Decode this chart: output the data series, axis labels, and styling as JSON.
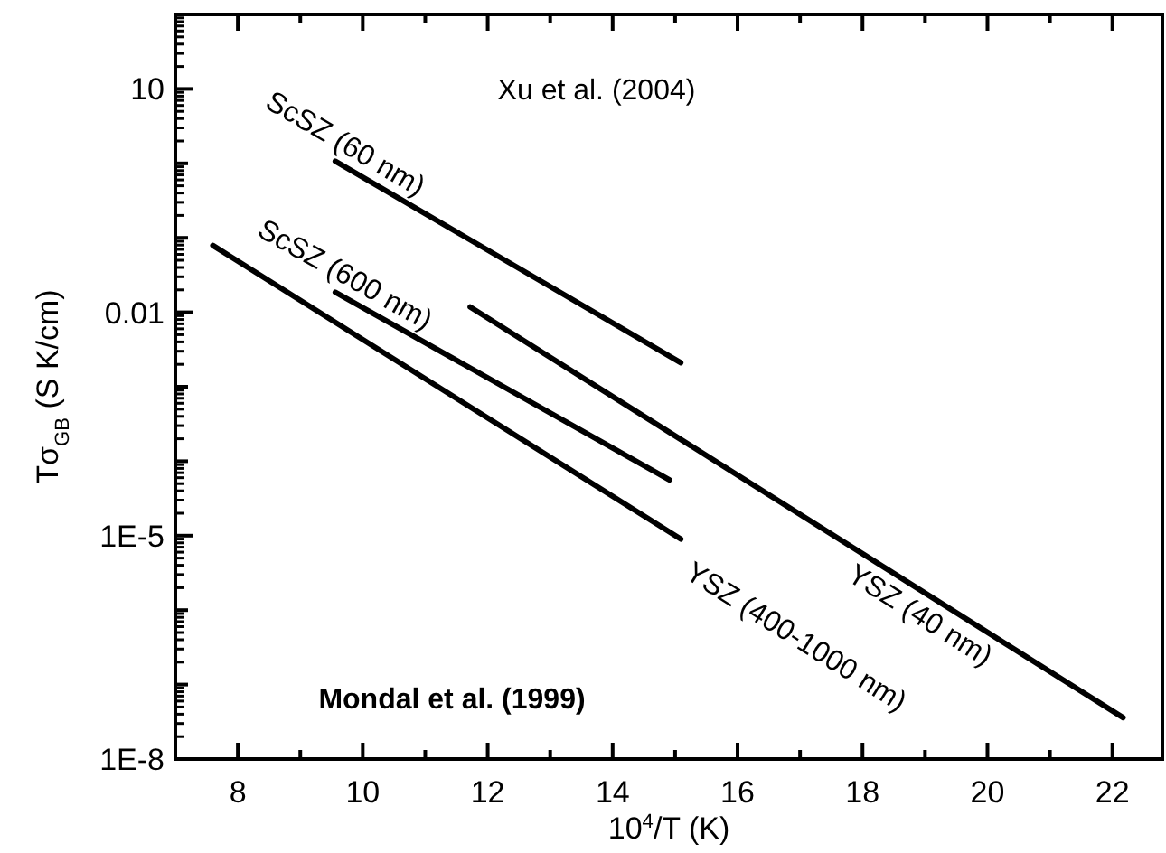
{
  "chart_data": {
    "type": "line",
    "xlabel": "10$^{4}$/T (K)",
    "ylabel": "Tσ$_{GB}$ (S K/cm)",
    "log": "y",
    "xlim": [
      7,
      22.8
    ],
    "ylim": [
      1e-08,
      100
    ],
    "xticks": [
      {
        "value": 7,
        "label": null
      },
      8,
      {
        "value": 9,
        "label": null
      },
      10,
      {
        "value": 11,
        "label": null
      },
      12,
      {
        "value": 13,
        "label": null
      },
      14,
      {
        "value": 15,
        "label": null
      },
      16,
      {
        "value": 17,
        "label": null
      },
      18,
      {
        "value": 19,
        "label": null
      },
      20,
      {
        "value": 21,
        "label": null
      },
      22
    ],
    "yticks": [
      {
        "value": 100,
        "label": null
      },
      10,
      {
        "value": 1,
        "label": null
      },
      {
        "value": 0.1,
        "label": null
      },
      0.01,
      {
        "value": 0.001,
        "label": null
      },
      {
        "value": 0.0001,
        "label": null
      },
      {
        "value": 1e-05,
        "label": "1E-5"
      },
      {
        "value": 1e-06,
        "label": null
      },
      {
        "value": 1e-07,
        "label": null
      },
      {
        "value": 1e-08,
        "label": "1E-8"
      }
    ],
    "grid": false,
    "legend": false,
    "marker": "none",
    "line_style": "solid",
    "series": [
      {
        "name": "ScSZ (60 nm)",
        "color": "#000000",
        "x": [
          9.56,
          15.09
        ],
        "values": [
          1.07,
          0.0021
        ]
      },
      {
        "name": "ScSZ (600 nm)",
        "color": "#000000",
        "x": [
          9.56,
          14.91
        ],
        "values": [
          0.0186,
          5.6e-05
        ]
      },
      {
        "name": "YSZ (400-1000 nm)",
        "color": "#000000",
        "x": [
          7.6,
          15.09
        ],
        "values": [
          0.079,
          9e-06
        ]
      },
      {
        "name": "YSZ (40 nm)",
        "color": "#000000",
        "x": [
          11.72,
          22.17
        ],
        "values": [
          0.0118,
          3.6e-08
        ]
      }
    ],
    "annotations": [
      "Xu et al. (2004)",
      "Mondal et al. (1999)"
    ]
  }
}
